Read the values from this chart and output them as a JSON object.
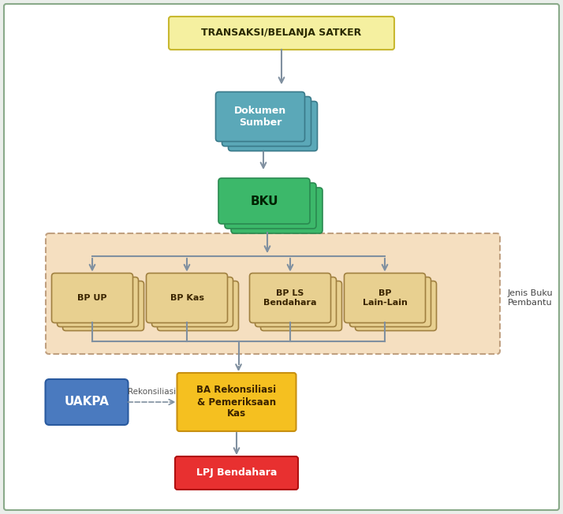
{
  "bg_outer": "#eaeeea",
  "bg_inner": "#ffffff",
  "border_color": "#8aaa8a",
  "transaksi_text": "TRANSAKSI/BELANJA SATKER",
  "transaksi_fill": "#f5f0a0",
  "transaksi_edge": "#c8b830",
  "dokumen_text": "Dokumen\nSumber",
  "dokumen_fill": "#5ba8b8",
  "dokumen_edge": "#3a7a8a",
  "bku_text": "BKU",
  "bku_fill": "#3cb86a",
  "bku_edge": "#2a8a50",
  "bp_box_fill": "#e8d090",
  "bp_box_edge": "#a08040",
  "bp_area_fill": "#f5dfc0",
  "bp_area_edge": "#c0a080",
  "bp_items": [
    "BP UP",
    "BP Kas",
    "BP LS\nBendahara",
    "BP\nLain-Lain"
  ],
  "uakpa_text": "UAKPA",
  "uakpa_fill": "#4a7abf",
  "uakpa_edge": "#2a5a9f",
  "ba_text": "BA Rekonsiliasi\n& Pemeriksaan\nKas",
  "ba_fill": "#f5c020",
  "ba_edge": "#c89010",
  "lpj_text": "LPJ Bendahara",
  "lpj_fill": "#e83030",
  "lpj_edge": "#b01010",
  "rekonsiliasi_text": "Rekonsiliasi",
  "jenis_buku_text": "Jenis Buku\nPembantu",
  "arrow_color": "#8090a0",
  "dashed_color": "#8090a0"
}
